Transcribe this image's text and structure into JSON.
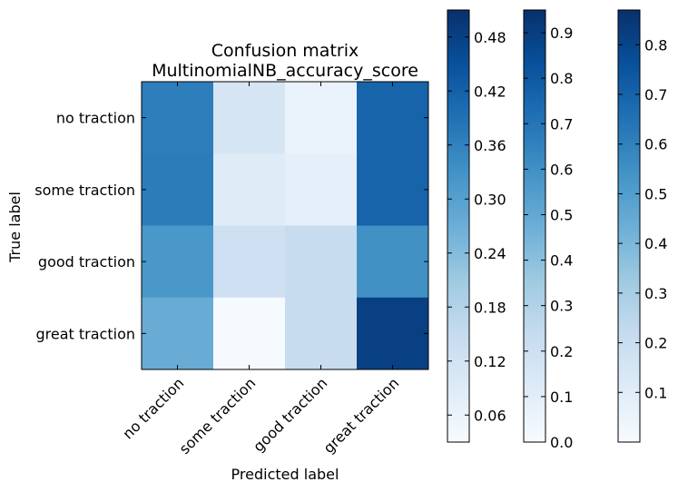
{
  "chart_data": {
    "type": "heatmap",
    "title": "Confusion matrix",
    "subtitle": "MultinomialNB_accuracy_score",
    "xlabel": "Predicted label",
    "ylabel": "True label",
    "x_categories": [
      "no traction",
      "some traction",
      "good traction",
      "great traction"
    ],
    "y_categories": [
      "no traction",
      "some traction",
      "good traction",
      "great traction"
    ],
    "values": [
      [
        0.7,
        0.17,
        0.07,
        0.8
      ],
      [
        0.71,
        0.12,
        0.09,
        0.8
      ],
      [
        0.6,
        0.21,
        0.24,
        0.63
      ],
      [
        0.51,
        0.01,
        0.24,
        0.94
      ]
    ],
    "colormap": "Blues",
    "colormap_stops": [
      "#f7fbff",
      "#deebf7",
      "#c6dbef",
      "#9ecae1",
      "#6baed6",
      "#4292c6",
      "#2171b5",
      "#08519c",
      "#08306b"
    ],
    "colorbars": [
      {
        "range": [
          0.03,
          0.51
        ],
        "ticks": [
          "0.06",
          "0.12",
          "0.18",
          "0.24",
          "0.30",
          "0.36",
          "0.42",
          "0.48"
        ]
      },
      {
        "range": [
          0.0,
          0.95
        ],
        "ticks": [
          "0.0",
          "0.1",
          "0.2",
          "0.3",
          "0.4",
          "0.5",
          "0.6",
          "0.7",
          "0.8",
          "0.9"
        ]
      },
      {
        "range": [
          0.0,
          0.87
        ],
        "ticks": [
          "0.1",
          "0.2",
          "0.3",
          "0.4",
          "0.5",
          "0.6",
          "0.7",
          "0.8"
        ]
      }
    ]
  }
}
